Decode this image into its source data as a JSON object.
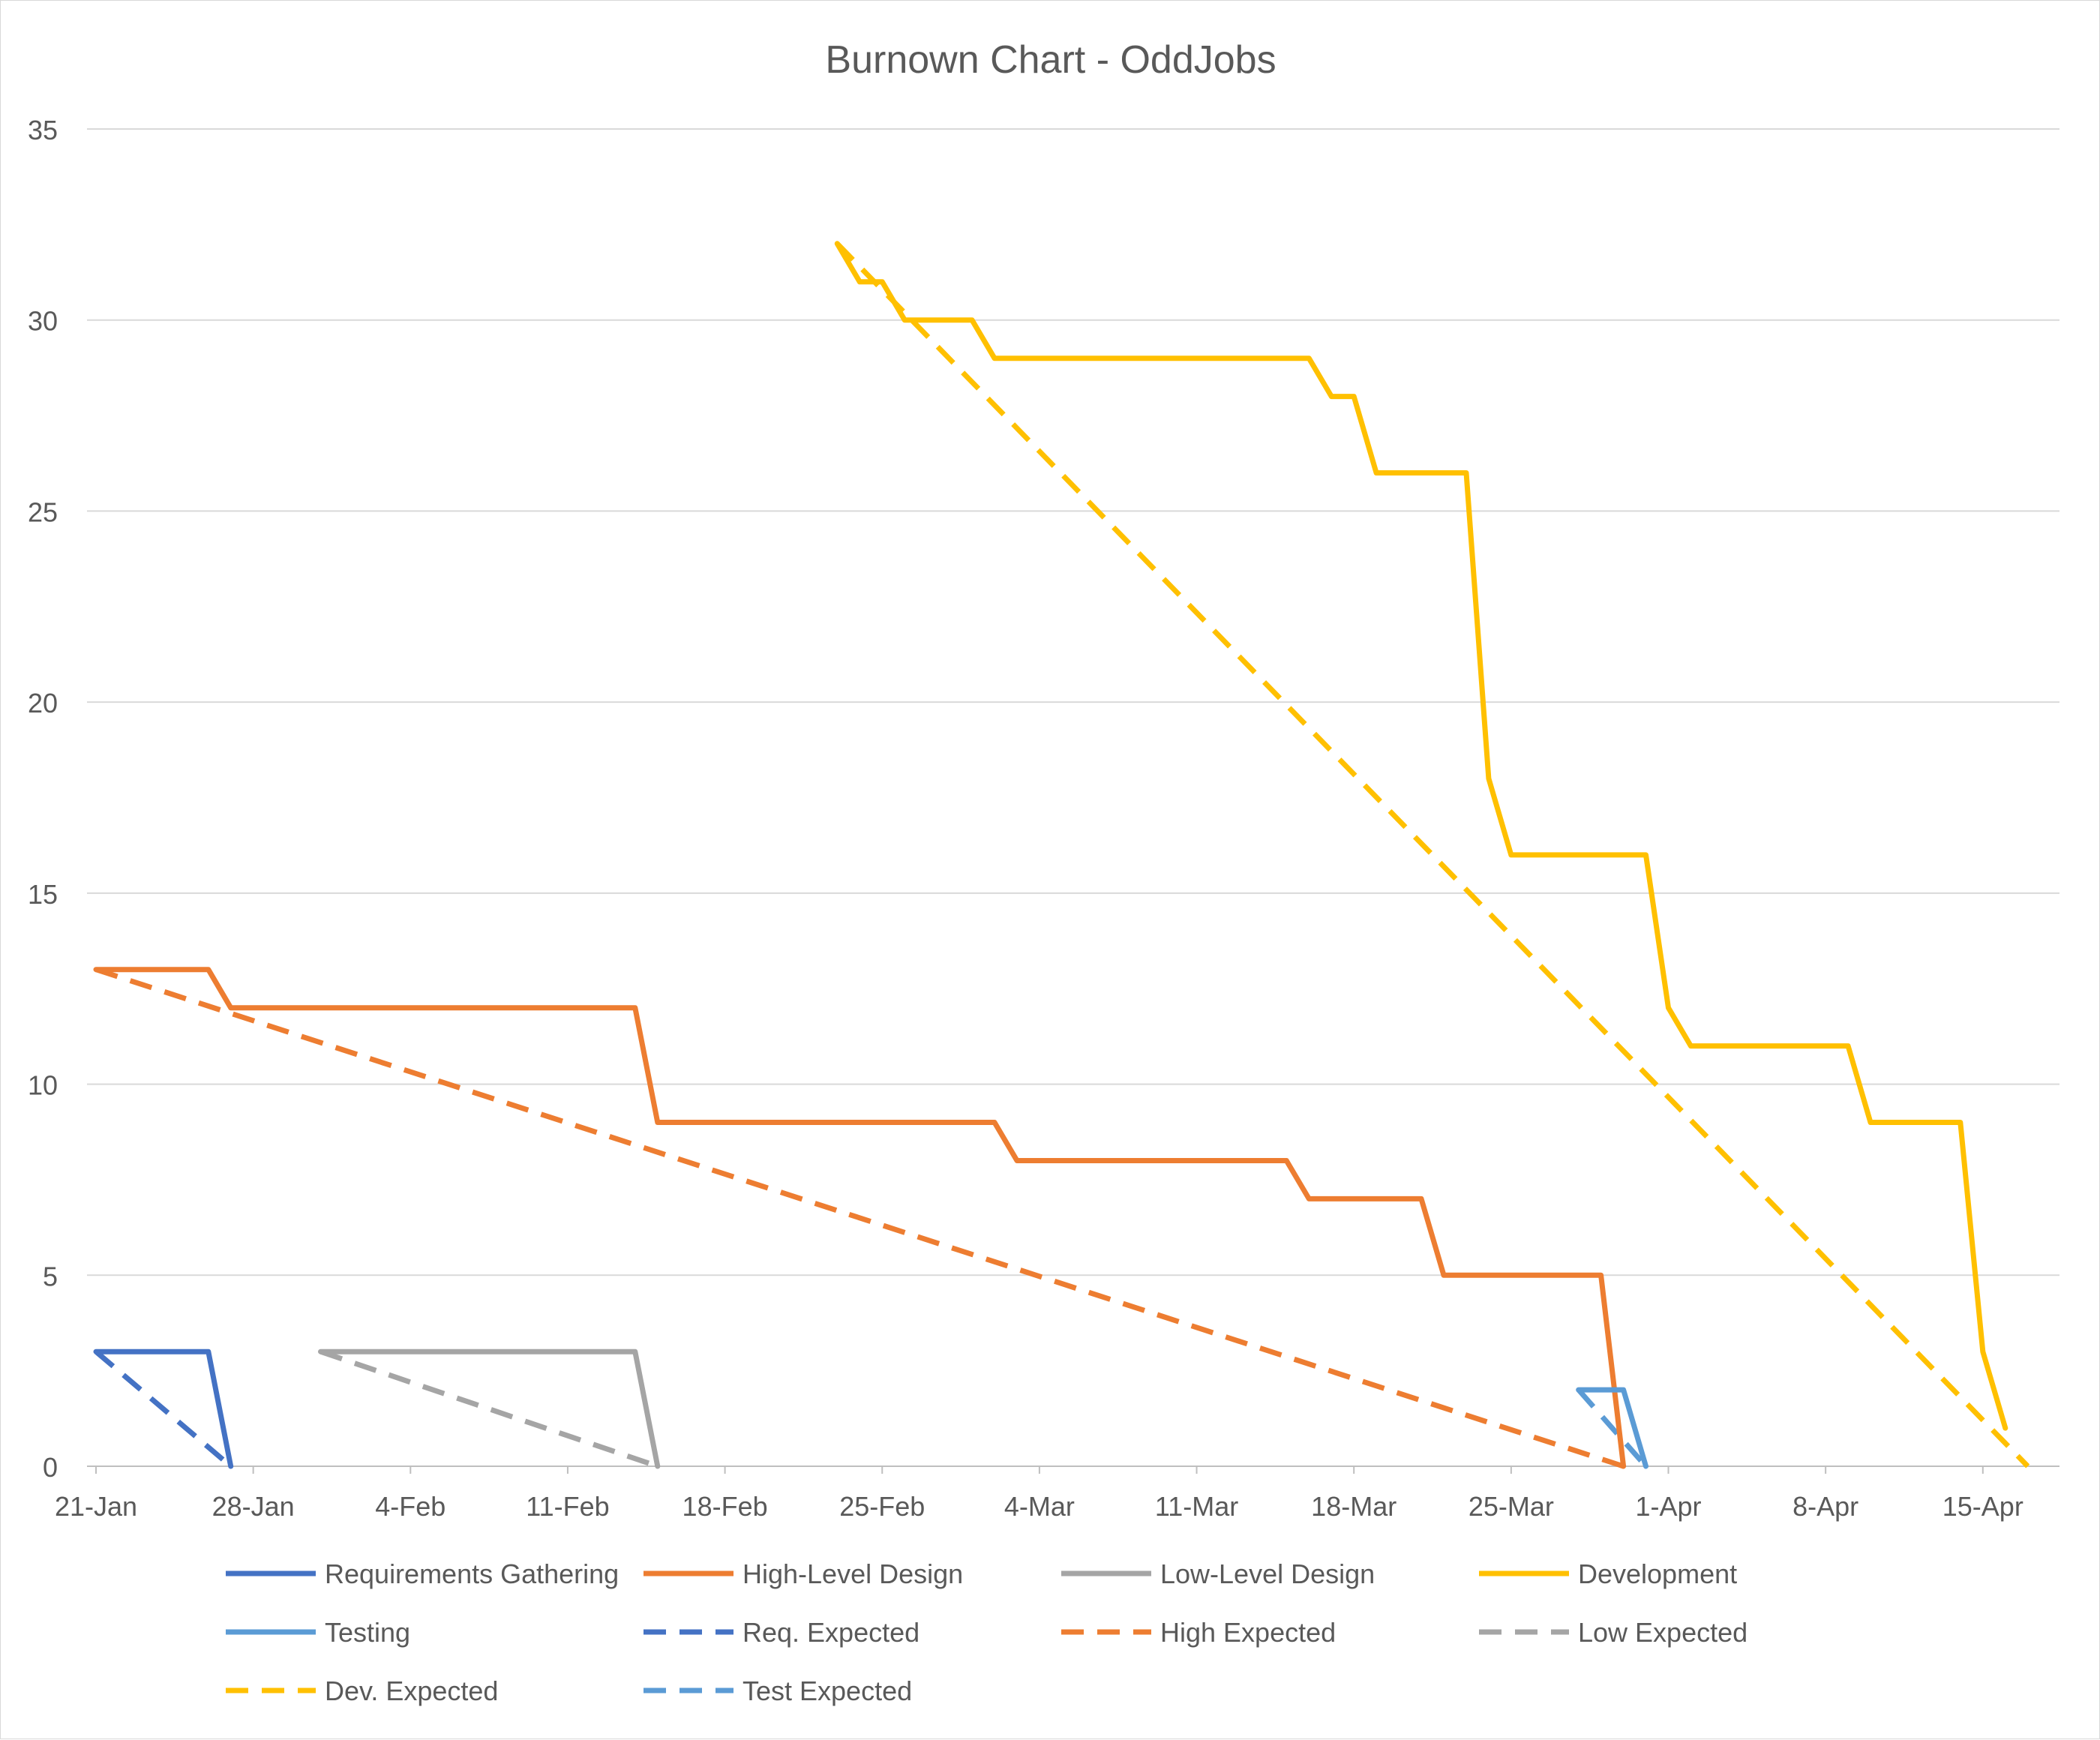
{
  "chart_data": {
    "type": "line",
    "title": "Burnown Chart - OddJobs",
    "xlabel": "",
    "ylabel": "",
    "ylim": [
      0,
      35
    ],
    "yticks": [
      0,
      5,
      10,
      15,
      20,
      25,
      30,
      35
    ],
    "xlim": [
      "2019-01-21",
      "2019-04-17"
    ],
    "x_ticks": [
      {
        "date": "2019-01-21",
        "label": "21-Jan"
      },
      {
        "date": "2019-01-28",
        "label": "28-Jan"
      },
      {
        "date": "2019-02-04",
        "label": "4-Feb"
      },
      {
        "date": "2019-02-11",
        "label": "11-Feb"
      },
      {
        "date": "2019-02-18",
        "label": "18-Feb"
      },
      {
        "date": "2019-02-25",
        "label": "25-Feb"
      },
      {
        "date": "2019-03-04",
        "label": "4-Mar"
      },
      {
        "date": "2019-03-11",
        "label": "11-Mar"
      },
      {
        "date": "2019-03-18",
        "label": "18-Mar"
      },
      {
        "date": "2019-03-25",
        "label": "25-Mar"
      },
      {
        "date": "2019-04-01",
        "label": "1-Apr"
      },
      {
        "date": "2019-04-08",
        "label": "8-Apr"
      },
      {
        "date": "2019-04-15",
        "label": "15-Apr"
      }
    ],
    "grid": true,
    "legend_position": "bottom",
    "series": [
      {
        "name": "Requirements Gathering",
        "color": "#4472C4",
        "dashed": false,
        "points": [
          [
            "2019-01-21",
            3
          ],
          [
            "2019-01-26",
            3
          ],
          [
            "2019-01-27",
            0
          ]
        ]
      },
      {
        "name": "High-Level Design",
        "color": "#ED7D31",
        "dashed": false,
        "points": [
          [
            "2019-01-21",
            13
          ],
          [
            "2019-01-26",
            13
          ],
          [
            "2019-01-27",
            12
          ],
          [
            "2019-02-14",
            12
          ],
          [
            "2019-02-15",
            9
          ],
          [
            "2019-03-02",
            9
          ],
          [
            "2019-03-03",
            8
          ],
          [
            "2019-03-15",
            8
          ],
          [
            "2019-03-16",
            7
          ],
          [
            "2019-03-21",
            7
          ],
          [
            "2019-03-22",
            5
          ],
          [
            "2019-03-29",
            5
          ],
          [
            "2019-03-30",
            0
          ]
        ]
      },
      {
        "name": "Low-Level Design",
        "color": "#A5A5A5",
        "dashed": false,
        "points": [
          [
            "2019-01-31",
            3
          ],
          [
            "2019-01-31",
            3
          ],
          [
            "2019-02-14",
            3
          ],
          [
            "2019-02-15",
            0
          ]
        ]
      },
      {
        "name": "Development",
        "color": "#FFC000",
        "dashed": false,
        "points": [
          [
            "2019-02-23",
            32
          ],
          [
            "2019-02-24",
            31
          ],
          [
            "2019-02-25",
            31
          ],
          [
            "2019-02-26",
            30
          ],
          [
            "2019-03-01",
            30
          ],
          [
            "2019-03-02",
            29
          ],
          [
            "2019-03-16",
            29
          ],
          [
            "2019-03-17",
            28
          ],
          [
            "2019-03-18",
            28
          ],
          [
            "2019-03-19",
            26
          ],
          [
            "2019-03-23",
            26
          ],
          [
            "2019-03-24",
            18
          ],
          [
            "2019-03-25",
            16
          ],
          [
            "2019-03-31",
            16
          ],
          [
            "2019-04-01",
            12
          ],
          [
            "2019-04-02",
            11
          ],
          [
            "2019-04-09",
            11
          ],
          [
            "2019-04-10",
            9
          ],
          [
            "2019-04-14",
            9
          ],
          [
            "2019-04-15",
            3
          ],
          [
            "2019-04-16",
            1
          ]
        ]
      },
      {
        "name": "Testing",
        "color": "#5B9BD5",
        "dashed": false,
        "points": [
          [
            "2019-03-28",
            2
          ],
          [
            "2019-03-30",
            2
          ],
          [
            "2019-03-31",
            0
          ]
        ]
      },
      {
        "name": "Req. Expected",
        "color": "#4472C4",
        "dashed": true,
        "points": [
          [
            "2019-01-21",
            3
          ],
          [
            "2019-01-27",
            0
          ]
        ]
      },
      {
        "name": "High Expected",
        "color": "#ED7D31",
        "dashed": true,
        "points": [
          [
            "2019-01-21",
            13
          ],
          [
            "2019-03-30",
            0
          ]
        ]
      },
      {
        "name": "Low Expected",
        "color": "#A5A5A5",
        "dashed": true,
        "points": [
          [
            "2019-01-31",
            3
          ],
          [
            "2019-02-15",
            0
          ]
        ]
      },
      {
        "name": "Dev. Expected",
        "color": "#FFC000",
        "dashed": true,
        "points": [
          [
            "2019-02-23",
            32
          ],
          [
            "2019-04-17",
            0
          ]
        ]
      },
      {
        "name": "Test Expected",
        "color": "#5B9BD5",
        "dashed": true,
        "points": [
          [
            "2019-03-28",
            2
          ],
          [
            "2019-03-31",
            0
          ]
        ]
      }
    ]
  }
}
